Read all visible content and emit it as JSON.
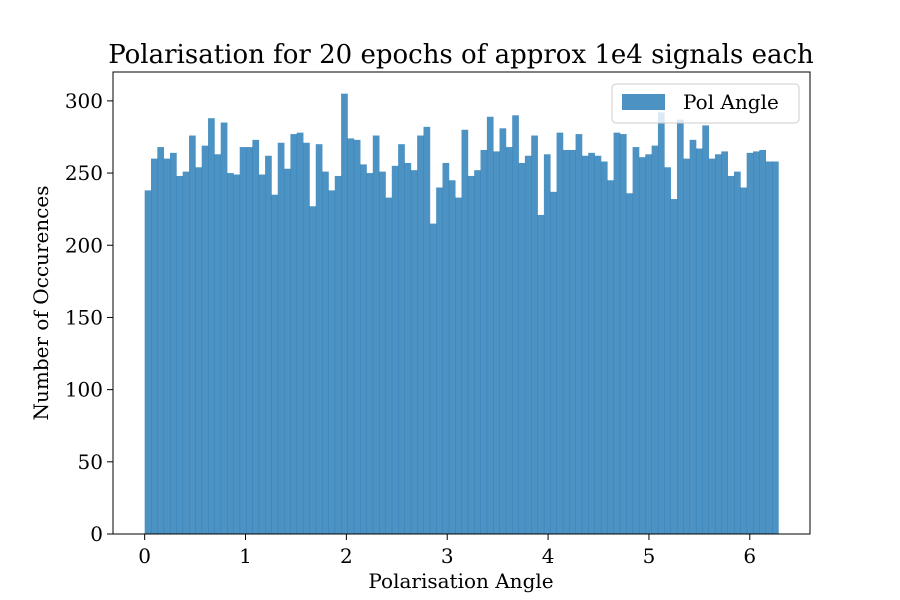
{
  "chart_data": {
    "type": "bar",
    "title": "Polarisation for 20 epochs of approx 1e4 signals each",
    "xlabel": "Polarisation Angle",
    "ylabel": "Number of Occurences",
    "xlim": [
      -0.314,
      6.597
    ],
    "ylim": [
      0,
      320
    ],
    "xticks": [
      0,
      1,
      2,
      3,
      4,
      5,
      6
    ],
    "yticks": [
      0,
      50,
      100,
      150,
      200,
      250,
      300
    ],
    "grid": false,
    "legend_position": "top-right",
    "bin_range": [
      0,
      6.2832
    ],
    "bin_count": 100,
    "series": [
      {
        "name": "Pol Angle",
        "color": "#1f77b4",
        "alpha": 0.8,
        "values": [
          238,
          260,
          268,
          260,
          264,
          248,
          251,
          276,
          254,
          269,
          288,
          263,
          285,
          250,
          249,
          268,
          268,
          273,
          249,
          262,
          235,
          271,
          253,
          277,
          278,
          271,
          227,
          270,
          251,
          238,
          248,
          305,
          274,
          273,
          256,
          250,
          276,
          251,
          233,
          255,
          270,
          257,
          252,
          276,
          282,
          215,
          240,
          257,
          245,
          233,
          280,
          248,
          252,
          266,
          289,
          265,
          281,
          268,
          290,
          257,
          262,
          276,
          221,
          263,
          237,
          278,
          266,
          266,
          277,
          262,
          264,
          262,
          258,
          245,
          278,
          277,
          236,
          268,
          261,
          263,
          269,
          292,
          254,
          232,
          287,
          260,
          273,
          267,
          283,
          260,
          263,
          265,
          248,
          251,
          240,
          264,
          265,
          266,
          258,
          258
        ]
      }
    ]
  }
}
